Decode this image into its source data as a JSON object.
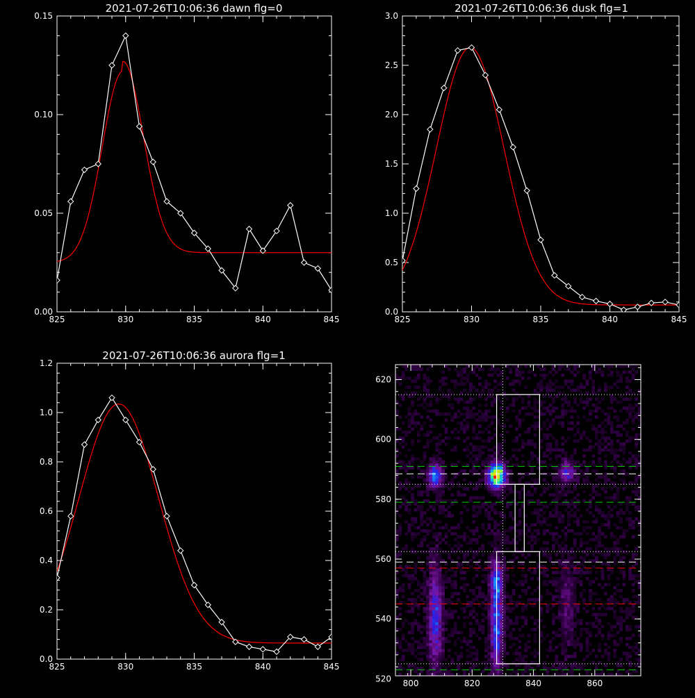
{
  "chart_data": [
    {
      "type": "line",
      "title": "2021-07-26T10:06:36 dawn flg=0",
      "xlim": [
        825,
        845
      ],
      "ylim": [
        0,
        0.15
      ],
      "xticks": [
        825,
        830,
        835,
        840,
        845
      ],
      "xticklabels": [
        "825",
        "830",
        "835",
        "840",
        "845"
      ],
      "yticks": [
        0,
        0.05,
        0.1,
        0.15
      ],
      "yticklabels": [
        "0.00",
        "0.05",
        "0.10",
        "0.15"
      ],
      "grid": false,
      "series": [
        {
          "style": "data",
          "color": "#ffffff",
          "marker": "diamond",
          "x": [
            825,
            826,
            827,
            828,
            829,
            830,
            831,
            832,
            833,
            834,
            835,
            836,
            837,
            838,
            839,
            840,
            841,
            842,
            843,
            844,
            845
          ],
          "y": [
            0.016,
            0.056,
            0.072,
            0.075,
            0.125,
            0.14,
            0.094,
            0.076,
            0.056,
            0.05,
            0.04,
            0.032,
            0.021,
            0.012,
            0.042,
            0.031,
            0.041,
            0.054,
            0.025,
            0.022,
            0.011
          ]
        },
        {
          "style": "fit",
          "color": "#ff0000",
          "model": "gaussian+constant",
          "amplitude": 0.097,
          "center": 829.8,
          "sigma": 1.5,
          "offset": 0.03,
          "baseline_below_center": 0.025
        }
      ]
    },
    {
      "type": "line",
      "title": "2021-07-26T10:06:36 dusk flg=1",
      "xlim": [
        825,
        845
      ],
      "ylim": [
        0,
        3.0
      ],
      "xticks": [
        825,
        830,
        835,
        840,
        845
      ],
      "xticklabels": [
        "825",
        "830",
        "835",
        "840",
        "845"
      ],
      "yticks": [
        0,
        0.5,
        1.0,
        1.5,
        2.0,
        2.5,
        3.0
      ],
      "yticklabels": [
        "0.0",
        "0.5",
        "1.0",
        "1.5",
        "2.0",
        "2.5",
        "3.0"
      ],
      "grid": false,
      "series": [
        {
          "style": "data",
          "color": "#ffffff",
          "marker": "diamond",
          "x": [
            825,
            826,
            827,
            828,
            829,
            830,
            831,
            832,
            833,
            834,
            835,
            836,
            837,
            838,
            839,
            840,
            841,
            842,
            843,
            844,
            845
          ],
          "y": [
            0.52,
            1.25,
            1.85,
            2.27,
            2.65,
            2.68,
            2.4,
            2.05,
            1.67,
            1.23,
            0.73,
            0.37,
            0.26,
            0.15,
            0.11,
            0.08,
            0.02,
            0.05,
            0.09,
            0.1,
            0.07
          ]
        },
        {
          "style": "fit",
          "color": "#ff0000",
          "model": "gaussian+constant",
          "amplitude": 2.61,
          "center": 829.9,
          "sigma": 2.45,
          "offset": 0.07
        }
      ]
    },
    {
      "type": "line",
      "title": "2021-07-26T10:06:36 aurora flg=1",
      "xlim": [
        825,
        845
      ],
      "ylim": [
        0,
        1.2
      ],
      "xticks": [
        825,
        830,
        835,
        840,
        845
      ],
      "xticklabels": [
        "825",
        "830",
        "835",
        "840",
        "845"
      ],
      "yticks": [
        0,
        0.2,
        0.4,
        0.6,
        0.8,
        1.0,
        1.2
      ],
      "yticklabels": [
        "0.0",
        "0.2",
        "0.4",
        "0.6",
        "0.8",
        "1.0",
        "1.2"
      ],
      "grid": false,
      "series": [
        {
          "style": "data",
          "color": "#ffffff",
          "marker": "diamond",
          "x": [
            825,
            826,
            827,
            828,
            829,
            830,
            831,
            832,
            833,
            834,
            835,
            836,
            837,
            838,
            839,
            840,
            841,
            842,
            843,
            844,
            845
          ],
          "y": [
            0.33,
            0.58,
            0.87,
            0.97,
            1.06,
            0.97,
            0.88,
            0.77,
            0.58,
            0.44,
            0.3,
            0.22,
            0.15,
            0.07,
            0.05,
            0.04,
            0.03,
            0.09,
            0.08,
            0.05,
            0.09
          ]
        },
        {
          "style": "fit",
          "color": "#ff0000",
          "model": "gaussian+constant",
          "amplitude": 0.97,
          "center": 829.5,
          "sigma": 2.9,
          "offset": 0.065
        }
      ]
    },
    {
      "type": "heatmap",
      "title": "",
      "colormap": "rainbow-on-black",
      "xlim": [
        795,
        875
      ],
      "ylim": [
        521,
        625
      ],
      "xticks": [
        800,
        820,
        840,
        860
      ],
      "xticklabels": [
        "800",
        "820",
        "840",
        "860"
      ],
      "yticks": [
        520,
        540,
        560,
        580,
        600,
        620
      ],
      "yticklabels": [
        "520",
        "540",
        "560",
        "580",
        "600",
        "620"
      ],
      "sources": [
        {
          "x": 808,
          "y": 588,
          "sx": 1.5,
          "sy": 2.4,
          "amp": 0.55
        },
        {
          "x": 828,
          "y": 588,
          "sx": 1.8,
          "sy": 2.6,
          "amp": 1.0
        },
        {
          "x": 851,
          "y": 589,
          "sx": 1.6,
          "sy": 2.4,
          "amp": 0.32
        },
        {
          "x": 808,
          "y": 541,
          "sx": 1.5,
          "sy": 11,
          "amp": 0.36
        },
        {
          "x": 828,
          "y": 540,
          "sx": 1.3,
          "sy": 12,
          "amp": 0.44
        },
        {
          "x": 828,
          "y": 553,
          "sx": 1.3,
          "sy": 3,
          "amp": 0.25
        },
        {
          "x": 851,
          "y": 545,
          "sx": 1.8,
          "sy": 10,
          "amp": 0.12
        }
      ],
      "hlines": [
        {
          "y": 591,
          "color": "#00cc00",
          "style": "dashed"
        },
        {
          "y": 588.5,
          "color": "#ffffff",
          "style": "dashed"
        },
        {
          "y": 585,
          "color": "#ffffff",
          "style": "dotted"
        },
        {
          "y": 579,
          "color": "#00cc00",
          "style": "dashed"
        },
        {
          "y": 562.5,
          "color": "#ffffff",
          "style": "dotted"
        },
        {
          "y": 559,
          "color": "#ffffff",
          "style": "dashed"
        },
        {
          "y": 557,
          "color": "#ff0000",
          "style": "dashed"
        },
        {
          "y": 545,
          "color": "#ff0000",
          "style": "dashed"
        },
        {
          "y": 525,
          "color": "#ffffff",
          "style": "dotted"
        },
        {
          "y": 523,
          "color": "#00cc00",
          "style": "dashed"
        },
        {
          "y": 615,
          "color": "#ffffff",
          "style": "dotted"
        }
      ],
      "vlines": [
        {
          "x": 830,
          "color": "#ffffff",
          "style": "dotted"
        }
      ],
      "boxes": [
        {
          "x0": 828,
          "x1": 842,
          "y0": 585,
          "y1": 615
        },
        {
          "x0": 834,
          "x1": 837,
          "y0": 562.5,
          "y1": 585
        },
        {
          "x0": 828,
          "x1": 842,
          "y0": 525,
          "y1": 562.5
        }
      ]
    }
  ]
}
